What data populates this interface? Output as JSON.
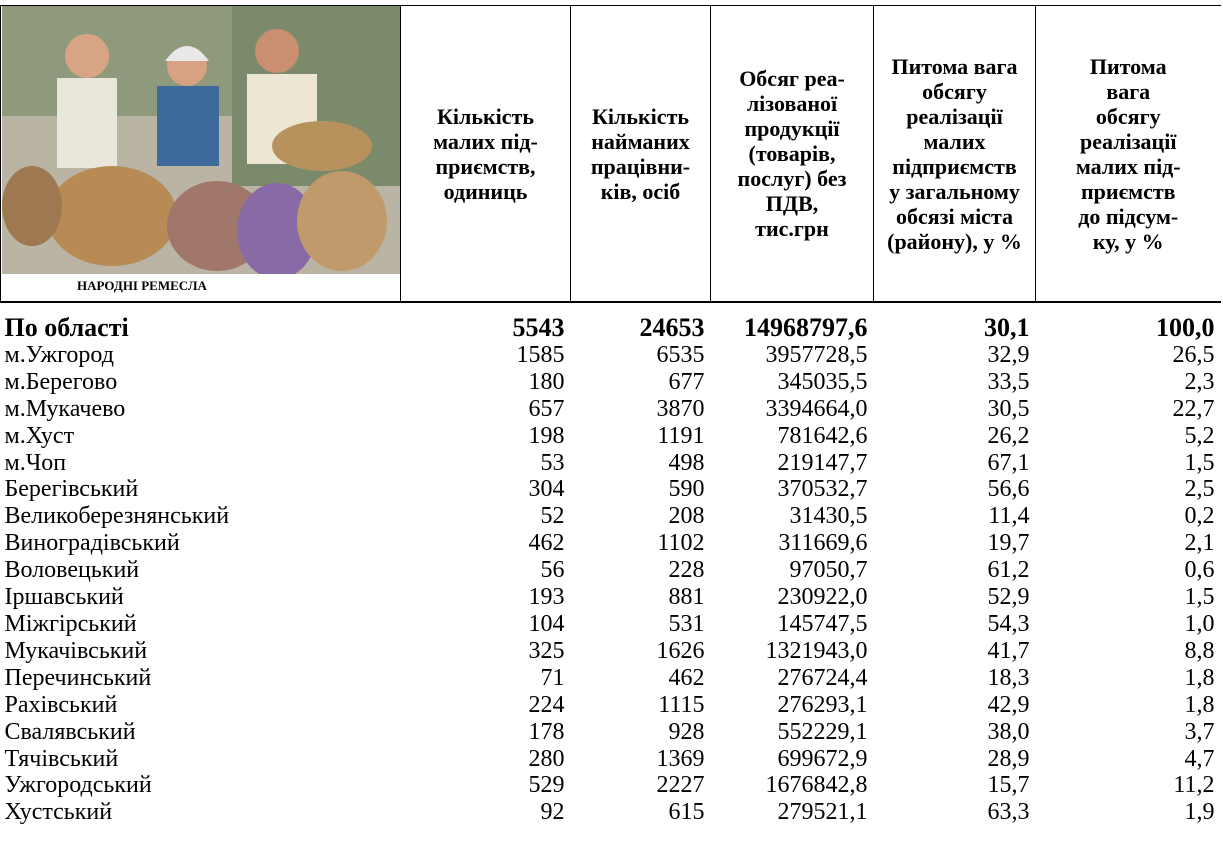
{
  "header": {
    "caption": "НАРОДНІ РЕМЕСЛА",
    "columns": [
      [
        "Кількість",
        "малих під-",
        "приємств,",
        "одиниць"
      ],
      [
        "Кількість",
        "найманих",
        "працівни-",
        "ків, осіб"
      ],
      [
        "Обсяг реа-",
        "лізованої",
        "продукції",
        "(товарів,",
        "послуг) без",
        "ПДВ,",
        "тис.грн"
      ],
      [
        "Питома вага",
        "обсягу",
        "реалізації",
        "малих",
        "підприємств",
        "у загальному",
        "обсязі міста",
        "(району), у %"
      ],
      [
        "Питома",
        "вага",
        "обсягу",
        "реалізації",
        "малих під-",
        "приємств",
        "до підсум-",
        "ку, у %"
      ]
    ]
  },
  "table": {
    "rows": [
      [
        "По області",
        "5543",
        "24653",
        "14968797,6",
        "30,1",
        "100,0"
      ],
      [
        "м.Ужгород",
        "1585",
        "6535",
        "3957728,5",
        "32,9",
        "26,5"
      ],
      [
        "м.Берегово",
        "180",
        "677",
        "345035,5",
        "33,5",
        "2,3"
      ],
      [
        "м.Мукачево",
        "657",
        "3870",
        "3394664,0",
        "30,5",
        "22,7"
      ],
      [
        "м.Хуст",
        "198",
        "1191",
        "781642,6",
        "26,2",
        "5,2"
      ],
      [
        "м.Чоп",
        "53",
        "498",
        "219147,7",
        "67,1",
        "1,5"
      ],
      [
        "Берегівський",
        "304",
        "590",
        "370532,7",
        "56,6",
        "2,5"
      ],
      [
        "Великоберезнянський",
        "52",
        "208",
        "31430,5",
        "11,4",
        "0,2"
      ],
      [
        "Виноградівський",
        "462",
        "1102",
        "311669,6",
        "19,7",
        "2,1"
      ],
      [
        "Воловецький",
        "56",
        "228",
        "97050,7",
        "61,2",
        "0,6"
      ],
      [
        "Іршавський",
        "193",
        "881",
        "230922,0",
        "52,9",
        "1,5"
      ],
      [
        "Міжгірський",
        "104",
        "531",
        "145747,5",
        "54,3",
        "1,0"
      ],
      [
        "Мукачівський",
        "325",
        "1626",
        "1321943,0",
        "41,7",
        "8,8"
      ],
      [
        "Перечинський",
        "71",
        "462",
        "276724,4",
        "18,3",
        "1,8"
      ],
      [
        "Рахівський",
        "224",
        "1115",
        "276293,1",
        "42,9",
        "1,8"
      ],
      [
        "Свалявський",
        "178",
        "928",
        "552229,1",
        "38,0",
        "3,7"
      ],
      [
        "Тячівський",
        "280",
        "1369",
        "699672,9",
        "28,9",
        "4,7"
      ],
      [
        "Ужгородський",
        "529",
        "2227",
        "1676842,8",
        "15,7",
        "11,2"
      ],
      [
        "Хустський",
        "92",
        "615",
        "279521,1",
        "63,3",
        "1,9"
      ]
    ]
  }
}
